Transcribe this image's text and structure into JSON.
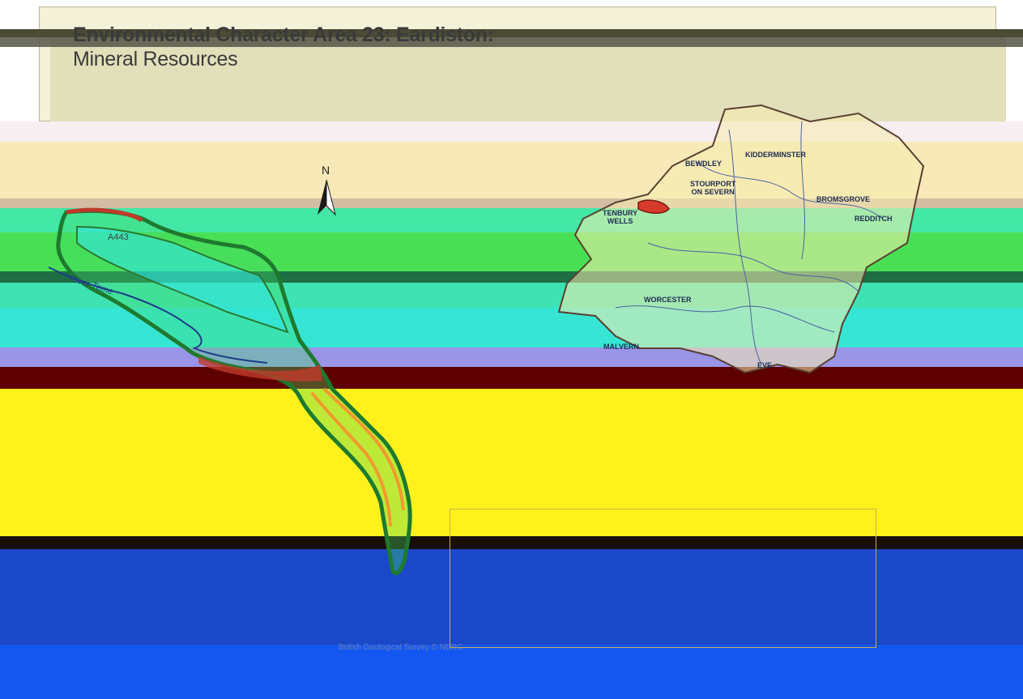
{
  "title": {
    "line1": "Environmental Character Area 23: Eardiston:",
    "line2": "Mineral Resources"
  },
  "north_arrow": {
    "label": "N"
  },
  "road_label": "A443",
  "river_label": "River Teme",
  "places": {
    "bewdley": "BEWDLEY",
    "kidderminster": "KIDDERMINSTER",
    "stourport": "STOURPORT\nON SEVERN",
    "bromsgrove": "BROMSGROVE",
    "redditch": "REDDITCH",
    "tenbury": "TENBURY\nWELLS",
    "worcester": "WORCESTER",
    "malvern": "MALVERN",
    "evesham": "EVE"
  },
  "credit": "British Geological Survey  © NERC",
  "colors": {
    "teal": "#43e7a6",
    "cyan": "#2fe8f0",
    "yellow": "#fff21c",
    "blue": "#1a48c8",
    "dark_red": "#5e0000",
    "green": "#3ed84a",
    "county_fill": "#f7ecb0"
  }
}
